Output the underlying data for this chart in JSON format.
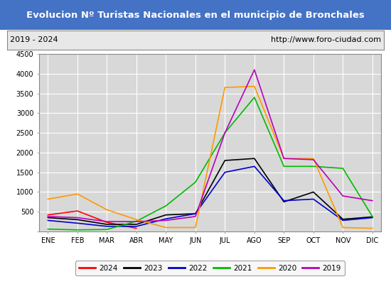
{
  "title": "Evolucion Nº Turistas Nacionales en el municipio de Bronchales",
  "subtitle_left": "2019 - 2024",
  "subtitle_right": "http://www.foro-ciudad.com",
  "months": [
    "ENE",
    "FEB",
    "MAR",
    "ABR",
    "MAY",
    "JUN",
    "JUL",
    "AGO",
    "SEP",
    "OCT",
    "NOV",
    "DIC"
  ],
  "series": {
    "2024": [
      420,
      520,
      230,
      80,
      null,
      null,
      null,
      null,
      null,
      null,
      null,
      null
    ],
    "2023": [
      350,
      300,
      180,
      180,
      420,
      450,
      1800,
      1850,
      750,
      1000,
      310,
      370
    ],
    "2022": [
      280,
      210,
      130,
      130,
      320,
      450,
      1500,
      1650,
      780,
      820,
      280,
      350
    ],
    "2021": [
      60,
      40,
      50,
      260,
      650,
      1250,
      2500,
      3400,
      1650,
      1650,
      1600,
      380
    ],
    "2020": [
      820,
      950,
      550,
      300,
      100,
      100,
      3650,
      3680,
      1850,
      1850,
      100,
      80
    ],
    "2019": [
      380,
      350,
      250,
      250,
      280,
      380,
      2500,
      4100,
      1850,
      1820,
      900,
      780
    ]
  },
  "colors": {
    "2024": "#ff0000",
    "2023": "#000000",
    "2022": "#0000cc",
    "2021": "#00bb00",
    "2020": "#ff9900",
    "2019": "#bb00bb"
  },
  "ylim": [
    0,
    4500
  ],
  "yticks": [
    0,
    500,
    1000,
    1500,
    2000,
    2500,
    3000,
    3500,
    4000,
    4500
  ],
  "title_bg": "#4472c4",
  "title_color": "#ffffff",
  "subtitle_bg": "#e8e8e8",
  "plot_bg": "#d8d8d8",
  "grid_color": "#ffffff",
  "outer_bg": "#ffffff",
  "border_color": "#888888"
}
